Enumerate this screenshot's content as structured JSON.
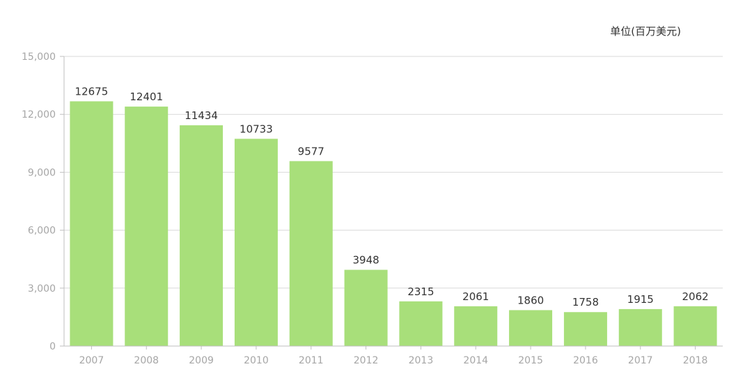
{
  "unit_label": "单位(百万美元)",
  "colors": {
    "bar": "#a8df7a",
    "grid": "#d9d9d9",
    "axis": "#bfbfbf",
    "tick_text": "#a6a6a6",
    "label_text": "#333333"
  },
  "chart_data": {
    "type": "bar",
    "categories": [
      "2007",
      "2008",
      "2009",
      "2010",
      "2011",
      "2012",
      "2013",
      "2014",
      "2015",
      "2016",
      "2017",
      "2018"
    ],
    "values": [
      12675,
      12401,
      11434,
      10733,
      9577,
      3948,
      2315,
      2061,
      1860,
      1758,
      1915,
      2062
    ],
    "ylim": [
      0,
      15000
    ],
    "yticks": [
      0,
      3000,
      6000,
      9000,
      12000,
      15000
    ],
    "ytick_labels": [
      "0",
      "3,000",
      "6,000",
      "9,000",
      "12,000",
      "15,000"
    ],
    "grid": true,
    "legend": "none"
  }
}
